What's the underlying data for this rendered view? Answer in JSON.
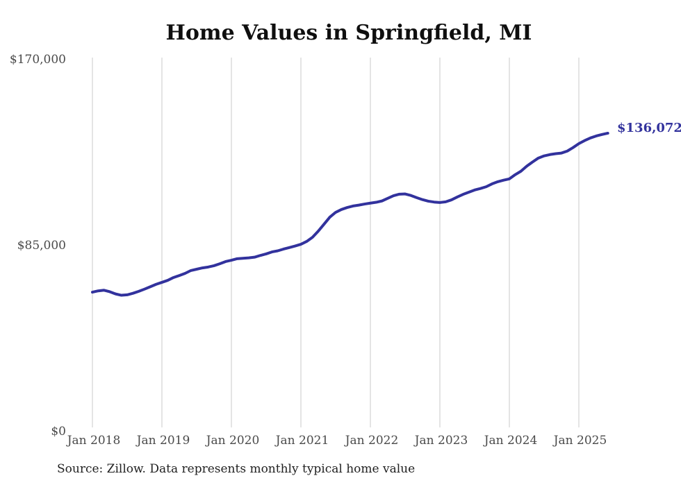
{
  "page": {
    "background": "#ffffff"
  },
  "chart_data": {
    "type": "line",
    "title": "Home Values in Springfield, MI",
    "source_note": "Source: Zillow. Data represents monthly typical home value",
    "end_label": "$136,072",
    "line_color": "#32329d",
    "grid": "vertical-yearly",
    "legend_position": "none",
    "ylim": [
      0,
      170000
    ],
    "y_ticks": [
      {
        "value": 0,
        "label": "$0"
      },
      {
        "value": 85000,
        "label": "$85,000"
      },
      {
        "value": 170000,
        "label": "$170,000"
      }
    ],
    "x_ticks": [
      "Jan 2018",
      "Jan 2019",
      "Jan 2020",
      "Jan 2021",
      "Jan 2022",
      "Jan 2023",
      "Jan 2024",
      "Jan 2025"
    ],
    "series": [
      {
        "name": "Monthly typical home value",
        "start_month": "2018-01",
        "end_month": "2025-06",
        "frequency": "monthly",
        "last_value": 136072,
        "values": [
          63400,
          64000,
          64300,
          63600,
          62600,
          62000,
          62200,
          62900,
          63800,
          64800,
          65900,
          67000,
          67900,
          68800,
          70100,
          71000,
          72000,
          73300,
          73900,
          74500,
          74900,
          75500,
          76400,
          77400,
          78000,
          78700,
          78900,
          79100,
          79400,
          80200,
          80900,
          81800,
          82300,
          83100,
          83800,
          84500,
          85300,
          86600,
          88500,
          91300,
          94500,
          97700,
          99900,
          101200,
          102100,
          102800,
          103200,
          103700,
          104100,
          104500,
          105100,
          106300,
          107500,
          108200,
          108300,
          107600,
          106600,
          105700,
          105000,
          104600,
          104400,
          104700,
          105600,
          106900,
          108100,
          109100,
          110100,
          110800,
          111600,
          112900,
          113900,
          114600,
          115200,
          117100,
          118700,
          121000,
          122900,
          124700,
          125700,
          126300,
          126700,
          127000,
          127900,
          129500,
          131300,
          132700,
          133900,
          134800,
          135500,
          136072
        ]
      }
    ]
  }
}
